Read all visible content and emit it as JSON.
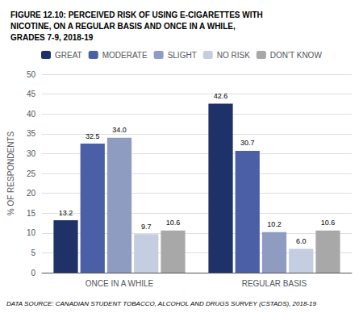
{
  "chart_data": {
    "type": "bar",
    "title": "FIGURE 12.10: PERCEIVED RISK OF USING E-CIGARETTES WITH\nNICOTINE, ON A REGULAR BASIS AND ONCE IN A WHILE,\nGRADES 7-9, 2018-19",
    "categories": [
      "ONCE IN A WHILE",
      "REGULAR BASIS"
    ],
    "series": [
      {
        "name": "GREAT",
        "color": "#1e3168",
        "values": [
          13.2,
          42.6
        ]
      },
      {
        "name": "MODERATE",
        "color": "#4a5fa5",
        "values": [
          32.5,
          30.7
        ]
      },
      {
        "name": "SLIGHT",
        "color": "#8e9cc2",
        "values": [
          34.0,
          10.2
        ],
        "value_labels": [
          "34.0",
          "10.2"
        ]
      },
      {
        "name": "NO RISK",
        "color": "#c5cde0",
        "values": [
          9.7,
          6.0
        ],
        "value_labels": [
          "9.7",
          "6.0"
        ]
      },
      {
        "name": "DON'T KNOW",
        "color": "#a8a8a8",
        "values": [
          10.6,
          10.6
        ]
      }
    ],
    "ylabel": "% OF RESPONDENTS",
    "ylim": [
      0,
      50
    ],
    "yticks": [
      0,
      5,
      10,
      15,
      20,
      25,
      30,
      35,
      40,
      45,
      50
    ],
    "grid": true,
    "legend": "top",
    "data_labels": true,
    "footnote": "DATA SOURCE: CANADIAN STUDENT TOBACCO, ALCOHOL AND DRUGS SURVEY (CSTADS), 2018-19"
  }
}
